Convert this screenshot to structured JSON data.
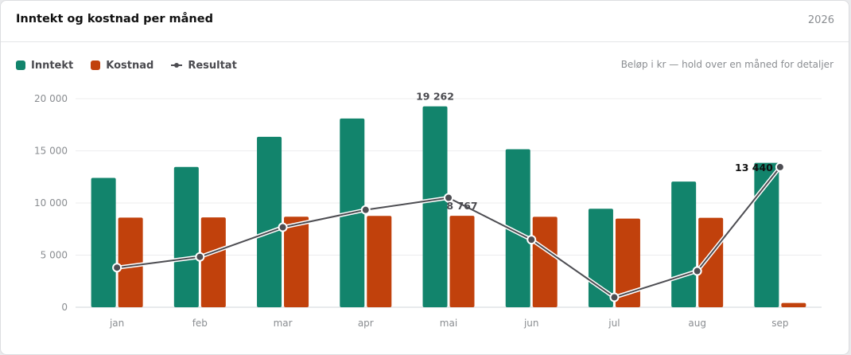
{
  "header": {
    "title": "Inntekt og kostnad per måned",
    "year": "2026"
  },
  "legend": {
    "note": "Beløp i kr — hold over en måned for detaljer"
  },
  "colors": {
    "income": "#12846c",
    "cost": "#c1410c",
    "result": "#4d4d52",
    "grid": "#ececee"
  },
  "chart_data": {
    "type": "bar",
    "categories": [
      "jan",
      "feb",
      "mar",
      "apr",
      "mai",
      "jun",
      "jul",
      "aug",
      "sep"
    ],
    "series": [
      {
        "name": "Inntekt",
        "type": "bar",
        "values": [
          12400,
          13450,
          16350,
          18100,
          19262,
          15150,
          9450,
          12050,
          13850
        ]
      },
      {
        "name": "Kostnad",
        "type": "bar",
        "values": [
          8600,
          8620,
          8680,
          8760,
          8767,
          8670,
          8500,
          8580,
          410
        ]
      },
      {
        "name": "Resultat",
        "type": "line",
        "values": [
          3800,
          4830,
          7670,
          9340,
          10495,
          6480,
          950,
          3470,
          13440
        ]
      }
    ],
    "yticks": [
      "20 000",
      "15 000",
      "10 000",
      "5 000",
      "0"
    ],
    "ylim": [
      0,
      20000
    ],
    "grid": true,
    "legend_position": "top-left",
    "data_labels": [
      {
        "text": "19 262",
        "series": "Inntekt",
        "category": "mai",
        "color": "#4a4a4f"
      },
      {
        "text": "8 767",
        "series": "Kostnad",
        "category": "mai",
        "color": "#4a4a4f"
      },
      {
        "text": "13 440",
        "series": "Resultat",
        "category": "sep",
        "color": "#111111"
      }
    ]
  }
}
